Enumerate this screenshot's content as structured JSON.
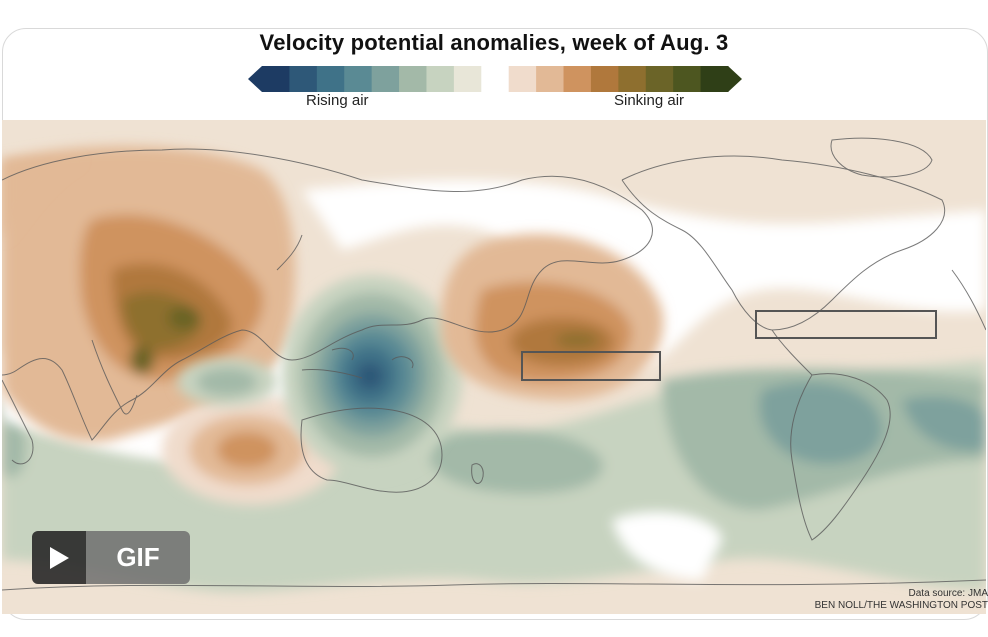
{
  "title": "Velocity potential anomalies, week of Aug. 3",
  "legend": {
    "rising_label": "Rising air",
    "sinking_label": "Sinking air",
    "colors": [
      "#1d3b63",
      "#2e5878",
      "#3f7288",
      "#5a8a94",
      "#7ea19d",
      "#a3b9a8",
      "#c7d3c0",
      "#e8e6d8",
      "#ffffff",
      "#f0dccc",
      "#e2b996",
      "#cf935f",
      "#b0783c",
      "#8e6f2f",
      "#6b6428",
      "#4d5620",
      "#2f3f17"
    ]
  },
  "map": {
    "description_icon": "world-map",
    "boxes": [
      "central-pacific-box",
      "caribbean-box"
    ]
  },
  "credits": {
    "source": "Data source: JMA",
    "byline": "BEN NOLL/THE WASHINGTON POST"
  },
  "gif_button": {
    "icon": "play-icon",
    "label": "GIF"
  }
}
